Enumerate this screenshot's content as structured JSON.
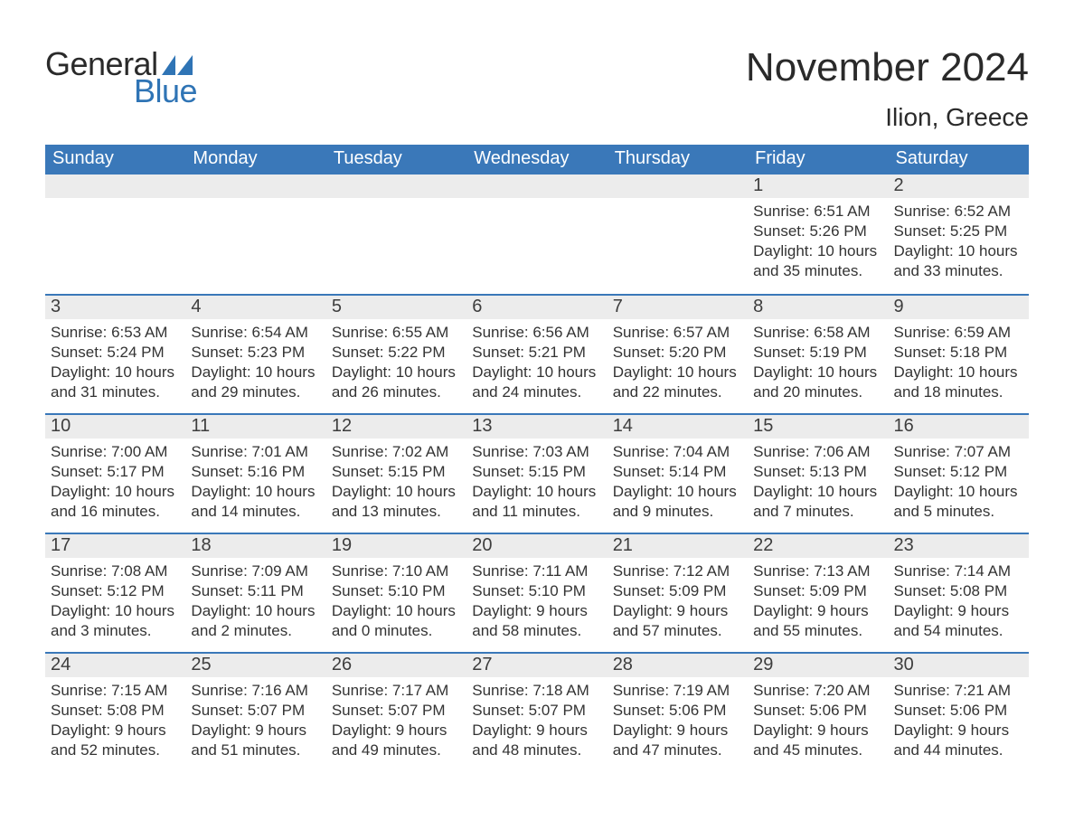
{
  "brand": {
    "word1": "General",
    "word2": "Blue",
    "text_color1": "#2a2a2a",
    "text_color2": "#2f74b5",
    "sail_color": "#2f74b5"
  },
  "title": "November 2024",
  "location": "Ilion, Greece",
  "colors": {
    "header_bg": "#3a78b9",
    "header_text": "#ffffff",
    "row_divider": "#3a78b9",
    "daynum_bg": "#ececec",
    "body_text": "#333333",
    "page_bg": "#ffffff"
  },
  "fonts": {
    "title_size_pt": 33,
    "location_size_pt": 21,
    "header_size_pt": 15,
    "daynum_size_pt": 15,
    "body_size_pt": 13
  },
  "day_headers": [
    "Sunday",
    "Monday",
    "Tuesday",
    "Wednesday",
    "Thursday",
    "Friday",
    "Saturday"
  ],
  "weeks": [
    [
      null,
      null,
      null,
      null,
      null,
      {
        "n": "1",
        "sunrise": "6:51 AM",
        "sunset": "5:26 PM",
        "dl": "10 hours and 35 minutes."
      },
      {
        "n": "2",
        "sunrise": "6:52 AM",
        "sunset": "5:25 PM",
        "dl": "10 hours and 33 minutes."
      }
    ],
    [
      {
        "n": "3",
        "sunrise": "6:53 AM",
        "sunset": "5:24 PM",
        "dl": "10 hours and 31 minutes."
      },
      {
        "n": "4",
        "sunrise": "6:54 AM",
        "sunset": "5:23 PM",
        "dl": "10 hours and 29 minutes."
      },
      {
        "n": "5",
        "sunrise": "6:55 AM",
        "sunset": "5:22 PM",
        "dl": "10 hours and 26 minutes."
      },
      {
        "n": "6",
        "sunrise": "6:56 AM",
        "sunset": "5:21 PM",
        "dl": "10 hours and 24 minutes."
      },
      {
        "n": "7",
        "sunrise": "6:57 AM",
        "sunset": "5:20 PM",
        "dl": "10 hours and 22 minutes."
      },
      {
        "n": "8",
        "sunrise": "6:58 AM",
        "sunset": "5:19 PM",
        "dl": "10 hours and 20 minutes."
      },
      {
        "n": "9",
        "sunrise": "6:59 AM",
        "sunset": "5:18 PM",
        "dl": "10 hours and 18 minutes."
      }
    ],
    [
      {
        "n": "10",
        "sunrise": "7:00 AM",
        "sunset": "5:17 PM",
        "dl": "10 hours and 16 minutes."
      },
      {
        "n": "11",
        "sunrise": "7:01 AM",
        "sunset": "5:16 PM",
        "dl": "10 hours and 14 minutes."
      },
      {
        "n": "12",
        "sunrise": "7:02 AM",
        "sunset": "5:15 PM",
        "dl": "10 hours and 13 minutes."
      },
      {
        "n": "13",
        "sunrise": "7:03 AM",
        "sunset": "5:15 PM",
        "dl": "10 hours and 11 minutes."
      },
      {
        "n": "14",
        "sunrise": "7:04 AM",
        "sunset": "5:14 PM",
        "dl": "10 hours and 9 minutes."
      },
      {
        "n": "15",
        "sunrise": "7:06 AM",
        "sunset": "5:13 PM",
        "dl": "10 hours and 7 minutes."
      },
      {
        "n": "16",
        "sunrise": "7:07 AM",
        "sunset": "5:12 PM",
        "dl": "10 hours and 5 minutes."
      }
    ],
    [
      {
        "n": "17",
        "sunrise": "7:08 AM",
        "sunset": "5:12 PM",
        "dl": "10 hours and 3 minutes."
      },
      {
        "n": "18",
        "sunrise": "7:09 AM",
        "sunset": "5:11 PM",
        "dl": "10 hours and 2 minutes."
      },
      {
        "n": "19",
        "sunrise": "7:10 AM",
        "sunset": "5:10 PM",
        "dl": "10 hours and 0 minutes."
      },
      {
        "n": "20",
        "sunrise": "7:11 AM",
        "sunset": "5:10 PM",
        "dl": "9 hours and 58 minutes."
      },
      {
        "n": "21",
        "sunrise": "7:12 AM",
        "sunset": "5:09 PM",
        "dl": "9 hours and 57 minutes."
      },
      {
        "n": "22",
        "sunrise": "7:13 AM",
        "sunset": "5:09 PM",
        "dl": "9 hours and 55 minutes."
      },
      {
        "n": "23",
        "sunrise": "7:14 AM",
        "sunset": "5:08 PM",
        "dl": "9 hours and 54 minutes."
      }
    ],
    [
      {
        "n": "24",
        "sunrise": "7:15 AM",
        "sunset": "5:08 PM",
        "dl": "9 hours and 52 minutes."
      },
      {
        "n": "25",
        "sunrise": "7:16 AM",
        "sunset": "5:07 PM",
        "dl": "9 hours and 51 minutes."
      },
      {
        "n": "26",
        "sunrise": "7:17 AM",
        "sunset": "5:07 PM",
        "dl": "9 hours and 49 minutes."
      },
      {
        "n": "27",
        "sunrise": "7:18 AM",
        "sunset": "5:07 PM",
        "dl": "9 hours and 48 minutes."
      },
      {
        "n": "28",
        "sunrise": "7:19 AM",
        "sunset": "5:06 PM",
        "dl": "9 hours and 47 minutes."
      },
      {
        "n": "29",
        "sunrise": "7:20 AM",
        "sunset": "5:06 PM",
        "dl": "9 hours and 45 minutes."
      },
      {
        "n": "30",
        "sunrise": "7:21 AM",
        "sunset": "5:06 PM",
        "dl": "9 hours and 44 minutes."
      }
    ]
  ],
  "labels": {
    "sunrise": "Sunrise:",
    "sunset": "Sunset:",
    "daylight": "Daylight:"
  }
}
